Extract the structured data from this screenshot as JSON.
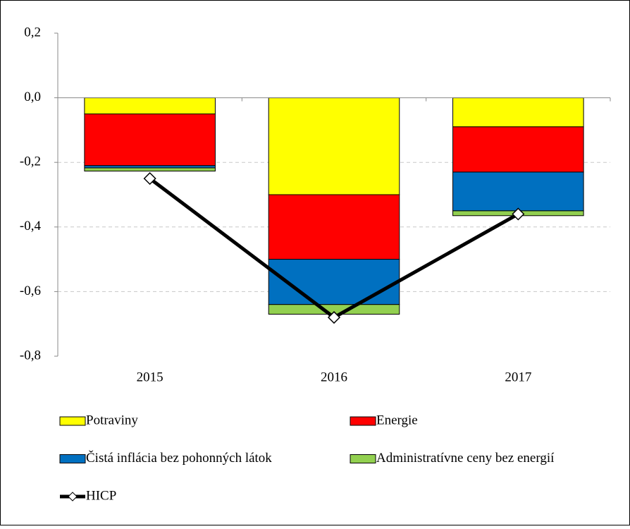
{
  "chart_data": {
    "type": "bar",
    "stacked": true,
    "categories": [
      "2015",
      "2016",
      "2017"
    ],
    "series": [
      {
        "name": "Potraviny",
        "color": "#ffff00",
        "values": [
          -0.05,
          -0.3,
          -0.09
        ]
      },
      {
        "name": "Energie",
        "color": "#ff0000",
        "values": [
          -0.16,
          -0.2,
          -0.14
        ]
      },
      {
        "name": "Čistá inflácia bez pohonných látok",
        "color": "#0070c0",
        "values": [
          -0.007,
          -0.14,
          -0.12
        ]
      },
      {
        "name": "Administratívne ceny bez energií",
        "color": "#92d050",
        "values": [
          -0.01,
          -0.03,
          -0.015
        ]
      },
      {
        "name": "HICP",
        "color": "#000000",
        "type": "line",
        "values": [
          -0.25,
          -0.68,
          -0.36
        ]
      }
    ],
    "ylim": [
      -0.8,
      0.2
    ],
    "yticks": [
      {
        "value": -0.8,
        "label": "-0,8"
      },
      {
        "value": -0.6,
        "label": "-0,6"
      },
      {
        "value": -0.4,
        "label": "-0,4"
      },
      {
        "value": -0.2,
        "label": "-0,2"
      },
      {
        "value": 0,
        "label": "0,0"
      },
      {
        "value": 0.2,
        "label": "0,2"
      }
    ],
    "grid": true
  }
}
